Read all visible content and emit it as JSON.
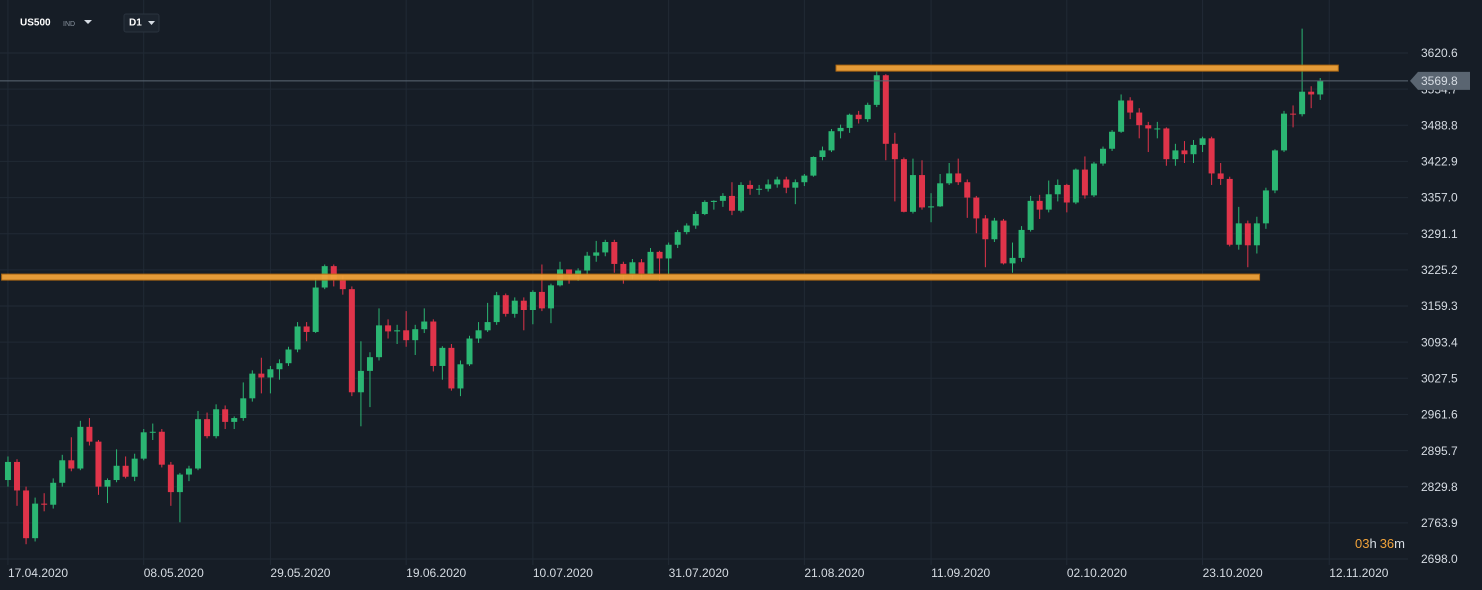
{
  "chart_data": {
    "type": "candlestick",
    "symbol": "US500",
    "market": "IND",
    "timeframe": "D1",
    "up_color": "#2bb673",
    "down_color": "#e0344a",
    "open": [
      2842,
      2875,
      2823,
      2736,
      2799,
      2797,
      2837,
      2878,
      2863,
      2939,
      2912,
      2830,
      2842,
      2868,
      2848,
      2881,
      2929,
      2930,
      2870,
      2820,
      2852,
      2863,
      2953,
      2922,
      2971,
      2948,
      2955,
      2991,
      3036,
      3029,
      3044,
      3055,
      3080,
      3122,
      3112,
      3193,
      3232,
      3207,
      3190,
      3002,
      3041,
      3066,
      3124,
      3113,
      3115,
      3097,
      3117,
      3131,
      3050,
      3083,
      3009,
      3053,
      3100,
      3115,
      3130,
      3179,
      3145,
      3169,
      3152,
      3185,
      3155,
      3197,
      3226,
      3215,
      3224,
      3251,
      3257,
      3276,
      3236,
      3215,
      3239,
      3218,
      3258,
      3246,
      3271,
      3294,
      3306,
      3327,
      3349,
      3351,
      3360,
      3333,
      3380,
      3373,
      3373,
      3381,
      3390,
      3375,
      3385,
      3397,
      3431,
      3443,
      3478,
      3484,
      3508,
      3500,
      3526,
      3580,
      3455,
      3427,
      3331,
      3398,
      3339,
      3341,
      3383,
      3401,
      3385,
      3357,
      3319,
      3281,
      3315,
      3237,
      3247,
      3298,
      3351,
      3335,
      3363,
      3380,
      3348,
      3408,
      3361,
      3419,
      3446,
      3477,
      3534,
      3512,
      3489,
      3483,
      3483,
      3427,
      3443,
      3436,
      3453,
      3465,
      3401,
      3391,
      3271,
      3310,
      3270,
      3310,
      3370,
      3443,
      3510,
      3509,
      3550,
      3545
    ],
    "high": [
      2885,
      2880,
      2830,
      2810,
      2818,
      2845,
      2888,
      2920,
      2950,
      2955,
      2915,
      2845,
      2898,
      2885,
      2890,
      2935,
      2945,
      2935,
      2875,
      2855,
      2868,
      2968,
      2965,
      2980,
      2978,
      2958,
      3020,
      3042,
      3065,
      3050,
      3062,
      3085,
      3130,
      3130,
      3210,
      3235,
      3235,
      3215,
      3195,
      3095,
      3075,
      3155,
      3135,
      3125,
      3150,
      3125,
      3155,
      3135,
      3086,
      3090,
      3060,
      3105,
      3130,
      3165,
      3185,
      3182,
      3175,
      3175,
      3188,
      3235,
      3200,
      3240,
      3225,
      3228,
      3258,
      3278,
      3280,
      3280,
      3240,
      3245,
      3245,
      3265,
      3260,
      3275,
      3298,
      3310,
      3332,
      3352,
      3352,
      3365,
      3385,
      3385,
      3388,
      3380,
      3390,
      3395,
      3395,
      3390,
      3400,
      3432,
      3450,
      3482,
      3490,
      3510,
      3515,
      3530,
      3588,
      3582,
      3475,
      3430,
      3428,
      3425,
      3365,
      3400,
      3420,
      3428,
      3390,
      3360,
      3325,
      3320,
      3318,
      3275,
      3305,
      3360,
      3362,
      3388,
      3390,
      3382,
      3410,
      3432,
      3422,
      3450,
      3480,
      3545,
      3540,
      3520,
      3495,
      3495,
      3485,
      3455,
      3460,
      3462,
      3468,
      3468,
      3420,
      3395,
      3340,
      3315,
      3322,
      3375,
      3445,
      3515,
      3525,
      3665,
      3560,
      3575
    ],
    "low": [
      2830,
      2795,
      2725,
      2730,
      2785,
      2790,
      2830,
      2858,
      2860,
      2905,
      2815,
      2800,
      2838,
      2845,
      2840,
      2878,
      2915,
      2865,
      2795,
      2765,
      2840,
      2860,
      2918,
      2918,
      2935,
      2935,
      2950,
      2985,
      3000,
      3000,
      3025,
      3050,
      3075,
      3095,
      3110,
      3190,
      3195,
      3180,
      2995,
      2940,
      2975,
      3060,
      3100,
      3090,
      3085,
      3070,
      3110,
      3040,
      3025,
      3005,
      2995,
      3050,
      3092,
      3112,
      3125,
      3140,
      3138,
      3115,
      3126,
      3150,
      3128,
      3195,
      3200,
      3205,
      3215,
      3240,
      3250,
      3220,
      3200,
      3208,
      3210,
      3215,
      3205,
      3215,
      3265,
      3290,
      3300,
      3325,
      3335,
      3340,
      3325,
      3330,
      3362,
      3362,
      3368,
      3375,
      3365,
      3345,
      3378,
      3395,
      3425,
      3440,
      3465,
      3475,
      3492,
      3495,
      3522,
      3425,
      3350,
      3330,
      3328,
      3335,
      3312,
      3340,
      3380,
      3380,
      3320,
      3292,
      3230,
      3276,
      3235,
      3220,
      3240,
      3295,
      3318,
      3330,
      3350,
      3330,
      3345,
      3355,
      3358,
      3415,
      3442,
      3475,
      3500,
      3465,
      3440,
      3465,
      3415,
      3415,
      3420,
      3420,
      3440,
      3380,
      3380,
      3268,
      3262,
      3230,
      3255,
      3300,
      3365,
      3440,
      3485,
      3505,
      3520,
      3535
    ],
    "close": [
      2875,
      2823,
      2736,
      2799,
      2797,
      2837,
      2878,
      2863,
      2939,
      2912,
      2830,
      2842,
      2868,
      2848,
      2881,
      2929,
      2930,
      2870,
      2820,
      2852,
      2863,
      2953,
      2922,
      2971,
      2948,
      2955,
      2991,
      3036,
      3029,
      3044,
      3055,
      3080,
      3122,
      3112,
      3193,
      3232,
      3207,
      3190,
      3002,
      3041,
      3066,
      3124,
      3113,
      3115,
      3097,
      3117,
      3131,
      3050,
      3083,
      3009,
      3053,
      3100,
      3115,
      3130,
      3179,
      3145,
      3169,
      3152,
      3185,
      3155,
      3197,
      3226,
      3215,
      3224,
      3251,
      3257,
      3276,
      3236,
      3215,
      3239,
      3218,
      3258,
      3246,
      3271,
      3294,
      3306,
      3327,
      3349,
      3351,
      3360,
      3333,
      3380,
      3373,
      3373,
      3381,
      3390,
      3375,
      3385,
      3397,
      3431,
      3443,
      3478,
      3484,
      3508,
      3500,
      3526,
      3580,
      3455,
      3427,
      3331,
      3398,
      3339,
      3341,
      3383,
      3401,
      3385,
      3357,
      3319,
      3281,
      3315,
      3237,
      3247,
      3298,
      3351,
      3335,
      3363,
      3380,
      3348,
      3408,
      3361,
      3419,
      3446,
      3477,
      3534,
      3512,
      3489,
      3483,
      3483,
      3427,
      3443,
      3436,
      3453,
      3465,
      3401,
      3391,
      3271,
      3310,
      3270,
      3310,
      3370,
      3443,
      3510,
      3509,
      3550,
      3545,
      3570
    ],
    "xlim": [
      -0.88,
      154.7
    ],
    "xticks": [
      {
        "value": 0,
        "label": "17.04.2020"
      },
      {
        "value": 15,
        "label": "08.05.2020"
      },
      {
        "value": 29,
        "label": "29.05.2020"
      },
      {
        "value": 44,
        "label": "19.06.2020"
      },
      {
        "value": 58,
        "label": "10.07.2020"
      },
      {
        "value": 73,
        "label": "31.07.2020"
      },
      {
        "value": 88,
        "label": "21.08.2020"
      },
      {
        "value": 102,
        "label": "11.09.2020"
      },
      {
        "value": 117,
        "label": "02.10.2020"
      },
      {
        "value": 132,
        "label": "23.10.2020"
      },
      {
        "value": 146,
        "label": "12.11.2020"
      }
    ],
    "ylim": [
      2687.1,
      3717.2
    ],
    "yticks": [
      {
        "value": 2698,
        "label": "2698.0"
      },
      2763.9,
      2829.8,
      2895.7,
      2961.6,
      3027.5,
      3093.4,
      3159.3,
      3225.2,
      3291.1,
      {
        "value": 3357,
        "label": "3357.0"
      },
      3422.9,
      3488.8,
      3554.7,
      3620.6
    ],
    "grid": true,
    "last_price": 3569.8,
    "levels": [
      {
        "value": 3593,
        "x": [
          91.5,
          147
        ]
      },
      {
        "value": 3212,
        "x": [
          -0.7,
          138.3
        ]
      }
    ],
    "level_color": "#f0a23a",
    "countdown": [
      "03",
      "h",
      "36",
      "m"
    ]
  }
}
